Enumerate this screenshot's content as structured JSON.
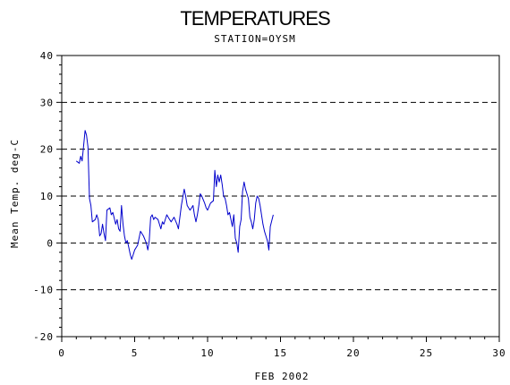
{
  "chart_data": {
    "type": "line",
    "title": "TEMPERATURES",
    "subtitle": "STATION=OYSM",
    "xlabel": "FEB 2002",
    "ylabel": "Mean Temp. deg-C",
    "xlim": [
      0,
      30
    ],
    "ylim": [
      -20,
      40
    ],
    "x_ticks": [
      0,
      5,
      10,
      15,
      20,
      25,
      30
    ],
    "y_ticks": [
      -20,
      -10,
      0,
      10,
      20,
      30,
      40
    ],
    "grid": "horizontal dashed",
    "line_color": "#0000cc",
    "series": [
      {
        "x": [
          1.0,
          1.2,
          1.3,
          1.4,
          1.6,
          1.7,
          1.8,
          1.9,
          2.0,
          2.1,
          2.3,
          2.4,
          2.5,
          2.6,
          2.7,
          2.8,
          2.9,
          3.0,
          3.1,
          3.3,
          3.4,
          3.5,
          3.7,
          3.8,
          3.9,
          4.0,
          4.1,
          4.2,
          4.3,
          4.4,
          4.5,
          4.6,
          4.7,
          4.8,
          4.9,
          5.0,
          5.2,
          5.4,
          5.6,
          5.8,
          5.9,
          6.0,
          6.1,
          6.2,
          6.3,
          6.4,
          6.6,
          6.8,
          6.9,
          7.0,
          7.2,
          7.4,
          7.5,
          7.7,
          7.9,
          8.0,
          8.2,
          8.4,
          8.5,
          8.6,
          8.7,
          8.8,
          8.9,
          9.0,
          9.1,
          9.2,
          9.3,
          9.4,
          9.5,
          9.6,
          9.8,
          9.9,
          10.0,
          10.2,
          10.4,
          10.5,
          10.6,
          10.7,
          10.8,
          10.9,
          11.0,
          11.1,
          11.2,
          11.3,
          11.4,
          11.5,
          11.7,
          11.8,
          11.9,
          12.0,
          12.1,
          12.2,
          12.3,
          12.4,
          12.5,
          12.6,
          12.7,
          12.8,
          12.9,
          13.0,
          13.1,
          13.2,
          13.3,
          13.4,
          13.5,
          13.6,
          13.8,
          13.9,
          14.0,
          14.1,
          14.2,
          14.3,
          14.5
        ],
        "y": [
          17.5,
          17.0,
          18.5,
          17.5,
          24.0,
          23.0,
          20.5,
          9.5,
          8.0,
          4.5,
          5.0,
          6.0,
          5.0,
          1.5,
          2.0,
          4.0,
          2.0,
          0.5,
          7.0,
          7.5,
          6.0,
          6.5,
          4.0,
          5.0,
          3.0,
          2.5,
          8.0,
          4.0,
          1.5,
          0.0,
          0.5,
          -1.0,
          -2.5,
          -3.5,
          -2.5,
          -1.5,
          -0.5,
          2.5,
          1.5,
          0.0,
          -1.5,
          0.5,
          5.5,
          6.0,
          5.0,
          5.5,
          5.0,
          3.0,
          4.5,
          4.0,
          6.0,
          5.0,
          4.5,
          5.5,
          4.0,
          3.0,
          8.0,
          11.5,
          10.0,
          8.0,
          7.5,
          7.0,
          7.5,
          8.0,
          6.0,
          4.5,
          6.0,
          8.0,
          10.5,
          10.0,
          8.5,
          7.5,
          7.0,
          8.5,
          9.0,
          15.5,
          12.0,
          14.5,
          13.0,
          14.5,
          12.5,
          10.0,
          9.5,
          8.0,
          6.0,
          6.5,
          3.5,
          6.0,
          1.0,
          0.0,
          -2.0,
          3.5,
          5.0,
          11.0,
          13.0,
          11.5,
          10.5,
          9.5,
          5.5,
          4.5,
          3.0,
          5.0,
          8.5,
          10.0,
          9.5,
          8.0,
          4.0,
          2.5,
          1.5,
          0.5,
          -1.5,
          3.5,
          6.0
        ]
      }
    ]
  }
}
